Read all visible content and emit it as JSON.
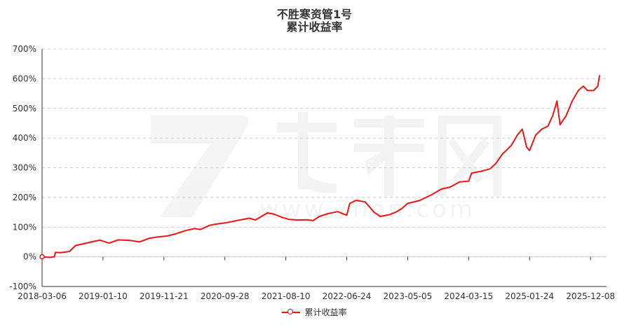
{
  "chart_data": {
    "type": "line",
    "title_line1": "不胜寒资管1号",
    "title_line2": "累计收益率",
    "xlabel": "",
    "ylabel": "",
    "ylim": [
      -100,
      700
    ],
    "y_ticks": [
      -100,
      0,
      100,
      200,
      300,
      400,
      500,
      600,
      700
    ],
    "y_tick_labels": [
      "-100%",
      "0%",
      "100%",
      "200%",
      "300%",
      "400%",
      "500%",
      "600%",
      "700%"
    ],
    "x_tick_labels": [
      "2018-03-06",
      "2019-01-10",
      "2019-11-21",
      "2020-09-28",
      "2021-08-10",
      "2022-06-24",
      "2023-05-05",
      "2024-03-15",
      "2025-01-24",
      "2025-12-08"
    ],
    "grid": true,
    "legend_placement": "bottom-center",
    "line_color": "#f01414",
    "series": [
      {
        "name": "累计收益率",
        "points": [
          [
            0,
            0
          ],
          [
            0.12,
            -2
          ],
          [
            0.2,
            0
          ],
          [
            0.22,
            15
          ],
          [
            0.3,
            14
          ],
          [
            0.45,
            18
          ],
          [
            0.55,
            38
          ],
          [
            0.7,
            45
          ],
          [
            0.85,
            52
          ],
          [
            0.95,
            56
          ],
          [
            1.1,
            46
          ],
          [
            1.25,
            57
          ],
          [
            1.45,
            55
          ],
          [
            1.6,
            50
          ],
          [
            1.75,
            62
          ],
          [
            1.9,
            67
          ],
          [
            2.05,
            70
          ],
          [
            2.2,
            78
          ],
          [
            2.35,
            88
          ],
          [
            2.5,
            95
          ],
          [
            2.6,
            92
          ],
          [
            2.75,
            106
          ],
          [
            2.85,
            110
          ],
          [
            3.0,
            114
          ],
          [
            3.2,
            122
          ],
          [
            3.4,
            130
          ],
          [
            3.5,
            124
          ],
          [
            3.6,
            136
          ],
          [
            3.7,
            148
          ],
          [
            3.8,
            144
          ],
          [
            3.95,
            132
          ],
          [
            4.05,
            126
          ],
          [
            4.2,
            124
          ],
          [
            4.35,
            125
          ],
          [
            4.45,
            122
          ],
          [
            4.55,
            136
          ],
          [
            4.7,
            146
          ],
          [
            4.85,
            152
          ],
          [
            5.0,
            140
          ],
          [
            5.05,
            180
          ],
          [
            5.15,
            190
          ],
          [
            5.3,
            185
          ],
          [
            5.45,
            150
          ],
          [
            5.55,
            136
          ],
          [
            5.7,
            142
          ],
          [
            5.8,
            150
          ],
          [
            5.9,
            162
          ],
          [
            6.0,
            180
          ],
          [
            6.2,
            190
          ],
          [
            6.4,
            210
          ],
          [
            6.55,
            228
          ],
          [
            6.7,
            235
          ],
          [
            6.85,
            252
          ],
          [
            7.0,
            255
          ],
          [
            7.05,
            282
          ],
          [
            7.2,
            288
          ],
          [
            7.35,
            296
          ],
          [
            7.45,
            315
          ],
          [
            7.55,
            345
          ],
          [
            7.7,
            375
          ],
          [
            7.8,
            410
          ],
          [
            7.88,
            430
          ],
          [
            7.95,
            370
          ],
          [
            8.0,
            358
          ],
          [
            8.1,
            410
          ],
          [
            8.2,
            430
          ],
          [
            8.3,
            440
          ],
          [
            8.38,
            475
          ],
          [
            8.45,
            525
          ],
          [
            8.5,
            445
          ],
          [
            8.6,
            475
          ],
          [
            8.7,
            525
          ],
          [
            8.8,
            560
          ],
          [
            8.88,
            575
          ],
          [
            8.95,
            560
          ],
          [
            9.05,
            560
          ],
          [
            9.12,
            575
          ],
          [
            9.15,
            612
          ]
        ]
      }
    ]
  }
}
